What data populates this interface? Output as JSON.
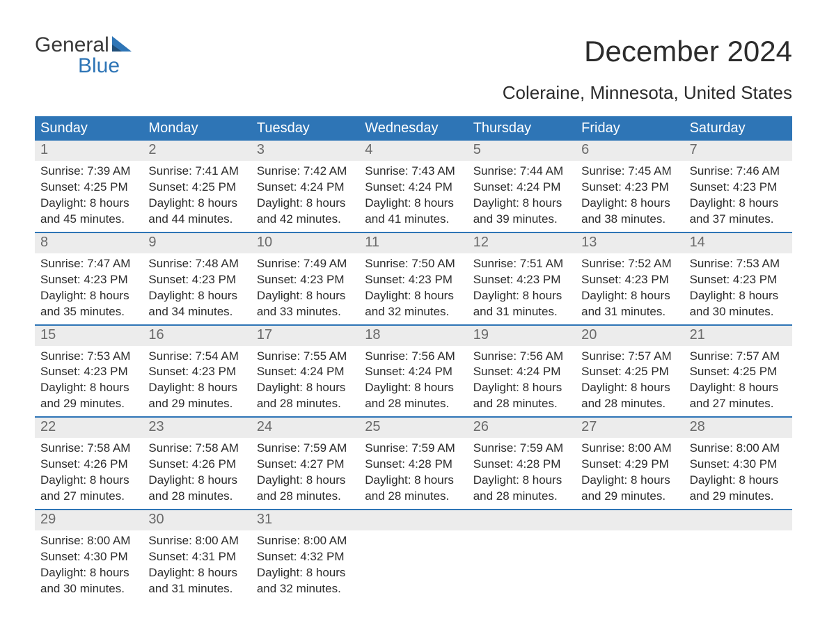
{
  "logo": {
    "word1": "General",
    "word2": "Blue"
  },
  "title": "December 2024",
  "location": "Coleraine, Minnesota, United States",
  "colors": {
    "header_bg": "#2e75b6",
    "header_text": "#ffffff",
    "daynum_bg": "#ececec",
    "daynum_text": "#6a6a6a",
    "body_text": "#2c2c2c",
    "page_bg": "#ffffff",
    "accent": "#2e75b6"
  },
  "typography": {
    "title_fontsize": 42,
    "location_fontsize": 26,
    "header_fontsize": 20,
    "daynum_fontsize": 20,
    "cell_fontsize": 17,
    "font_family": "Arial"
  },
  "day_names": [
    "Sunday",
    "Monday",
    "Tuesday",
    "Wednesday",
    "Thursday",
    "Friday",
    "Saturday"
  ],
  "weeks": [
    [
      {
        "n": "1",
        "sr": "Sunrise: 7:39 AM",
        "ss": "Sunset: 4:25 PM",
        "d1": "Daylight: 8 hours",
        "d2": "and 45 minutes."
      },
      {
        "n": "2",
        "sr": "Sunrise: 7:41 AM",
        "ss": "Sunset: 4:25 PM",
        "d1": "Daylight: 8 hours",
        "d2": "and 44 minutes."
      },
      {
        "n": "3",
        "sr": "Sunrise: 7:42 AM",
        "ss": "Sunset: 4:24 PM",
        "d1": "Daylight: 8 hours",
        "d2": "and 42 minutes."
      },
      {
        "n": "4",
        "sr": "Sunrise: 7:43 AM",
        "ss": "Sunset: 4:24 PM",
        "d1": "Daylight: 8 hours",
        "d2": "and 41 minutes."
      },
      {
        "n": "5",
        "sr": "Sunrise: 7:44 AM",
        "ss": "Sunset: 4:24 PM",
        "d1": "Daylight: 8 hours",
        "d2": "and 39 minutes."
      },
      {
        "n": "6",
        "sr": "Sunrise: 7:45 AM",
        "ss": "Sunset: 4:23 PM",
        "d1": "Daylight: 8 hours",
        "d2": "and 38 minutes."
      },
      {
        "n": "7",
        "sr": "Sunrise: 7:46 AM",
        "ss": "Sunset: 4:23 PM",
        "d1": "Daylight: 8 hours",
        "d2": "and 37 minutes."
      }
    ],
    [
      {
        "n": "8",
        "sr": "Sunrise: 7:47 AM",
        "ss": "Sunset: 4:23 PM",
        "d1": "Daylight: 8 hours",
        "d2": "and 35 minutes."
      },
      {
        "n": "9",
        "sr": "Sunrise: 7:48 AM",
        "ss": "Sunset: 4:23 PM",
        "d1": "Daylight: 8 hours",
        "d2": "and 34 minutes."
      },
      {
        "n": "10",
        "sr": "Sunrise: 7:49 AM",
        "ss": "Sunset: 4:23 PM",
        "d1": "Daylight: 8 hours",
        "d2": "and 33 minutes."
      },
      {
        "n": "11",
        "sr": "Sunrise: 7:50 AM",
        "ss": "Sunset: 4:23 PM",
        "d1": "Daylight: 8 hours",
        "d2": "and 32 minutes."
      },
      {
        "n": "12",
        "sr": "Sunrise: 7:51 AM",
        "ss": "Sunset: 4:23 PM",
        "d1": "Daylight: 8 hours",
        "d2": "and 31 minutes."
      },
      {
        "n": "13",
        "sr": "Sunrise: 7:52 AM",
        "ss": "Sunset: 4:23 PM",
        "d1": "Daylight: 8 hours",
        "d2": "and 31 minutes."
      },
      {
        "n": "14",
        "sr": "Sunrise: 7:53 AM",
        "ss": "Sunset: 4:23 PM",
        "d1": "Daylight: 8 hours",
        "d2": "and 30 minutes."
      }
    ],
    [
      {
        "n": "15",
        "sr": "Sunrise: 7:53 AM",
        "ss": "Sunset: 4:23 PM",
        "d1": "Daylight: 8 hours",
        "d2": "and 29 minutes."
      },
      {
        "n": "16",
        "sr": "Sunrise: 7:54 AM",
        "ss": "Sunset: 4:23 PM",
        "d1": "Daylight: 8 hours",
        "d2": "and 29 minutes."
      },
      {
        "n": "17",
        "sr": "Sunrise: 7:55 AM",
        "ss": "Sunset: 4:24 PM",
        "d1": "Daylight: 8 hours",
        "d2": "and 28 minutes."
      },
      {
        "n": "18",
        "sr": "Sunrise: 7:56 AM",
        "ss": "Sunset: 4:24 PM",
        "d1": "Daylight: 8 hours",
        "d2": "and 28 minutes."
      },
      {
        "n": "19",
        "sr": "Sunrise: 7:56 AM",
        "ss": "Sunset: 4:24 PM",
        "d1": "Daylight: 8 hours",
        "d2": "and 28 minutes."
      },
      {
        "n": "20",
        "sr": "Sunrise: 7:57 AM",
        "ss": "Sunset: 4:25 PM",
        "d1": "Daylight: 8 hours",
        "d2": "and 28 minutes."
      },
      {
        "n": "21",
        "sr": "Sunrise: 7:57 AM",
        "ss": "Sunset: 4:25 PM",
        "d1": "Daylight: 8 hours",
        "d2": "and 27 minutes."
      }
    ],
    [
      {
        "n": "22",
        "sr": "Sunrise: 7:58 AM",
        "ss": "Sunset: 4:26 PM",
        "d1": "Daylight: 8 hours",
        "d2": "and 27 minutes."
      },
      {
        "n": "23",
        "sr": "Sunrise: 7:58 AM",
        "ss": "Sunset: 4:26 PM",
        "d1": "Daylight: 8 hours",
        "d2": "and 28 minutes."
      },
      {
        "n": "24",
        "sr": "Sunrise: 7:59 AM",
        "ss": "Sunset: 4:27 PM",
        "d1": "Daylight: 8 hours",
        "d2": "and 28 minutes."
      },
      {
        "n": "25",
        "sr": "Sunrise: 7:59 AM",
        "ss": "Sunset: 4:28 PM",
        "d1": "Daylight: 8 hours",
        "d2": "and 28 minutes."
      },
      {
        "n": "26",
        "sr": "Sunrise: 7:59 AM",
        "ss": "Sunset: 4:28 PM",
        "d1": "Daylight: 8 hours",
        "d2": "and 28 minutes."
      },
      {
        "n": "27",
        "sr": "Sunrise: 8:00 AM",
        "ss": "Sunset: 4:29 PM",
        "d1": "Daylight: 8 hours",
        "d2": "and 29 minutes."
      },
      {
        "n": "28",
        "sr": "Sunrise: 8:00 AM",
        "ss": "Sunset: 4:30 PM",
        "d1": "Daylight: 8 hours",
        "d2": "and 29 minutes."
      }
    ],
    [
      {
        "n": "29",
        "sr": "Sunrise: 8:00 AM",
        "ss": "Sunset: 4:30 PM",
        "d1": "Daylight: 8 hours",
        "d2": "and 30 minutes."
      },
      {
        "n": "30",
        "sr": "Sunrise: 8:00 AM",
        "ss": "Sunset: 4:31 PM",
        "d1": "Daylight: 8 hours",
        "d2": "and 31 minutes."
      },
      {
        "n": "31",
        "sr": "Sunrise: 8:00 AM",
        "ss": "Sunset: 4:32 PM",
        "d1": "Daylight: 8 hours",
        "d2": "and 32 minutes."
      },
      {
        "n": "",
        "sr": "",
        "ss": "",
        "d1": "",
        "d2": ""
      },
      {
        "n": "",
        "sr": "",
        "ss": "",
        "d1": "",
        "d2": ""
      },
      {
        "n": "",
        "sr": "",
        "ss": "",
        "d1": "",
        "d2": ""
      },
      {
        "n": "",
        "sr": "",
        "ss": "",
        "d1": "",
        "d2": ""
      }
    ]
  ]
}
